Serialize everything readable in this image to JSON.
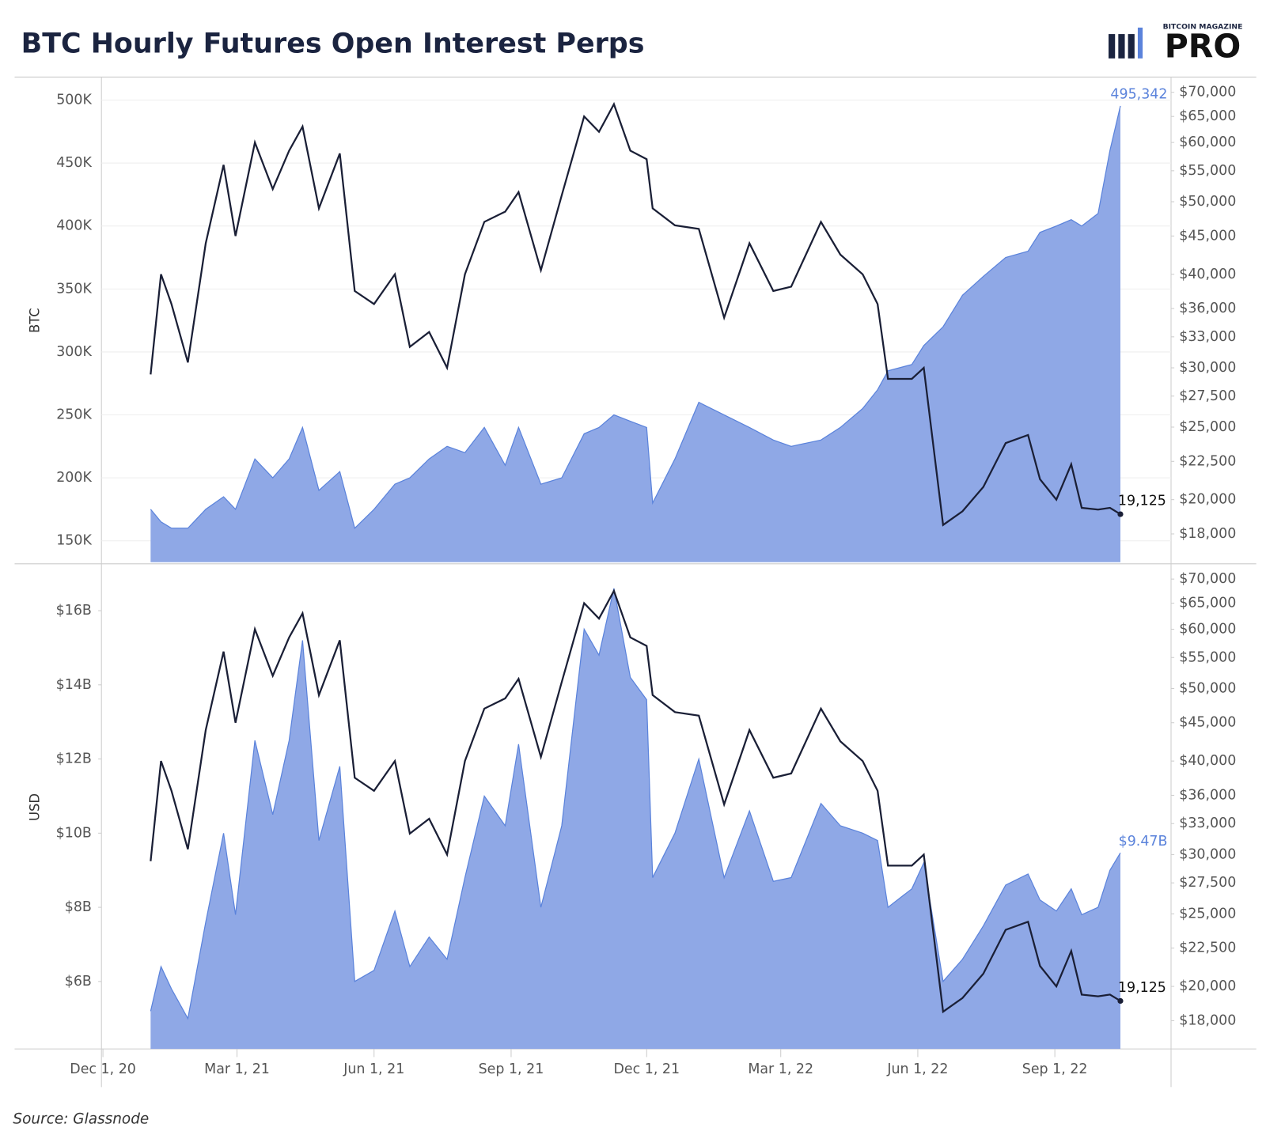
{
  "title": "BTC Hourly Futures Open Interest Perps",
  "source": "Source: Glassnode",
  "logo": {
    "top": "BITCOIN MAGAZINE",
    "main": "PRO"
  },
  "chart_data": [
    {
      "type": "area",
      "ylabel": "BTC",
      "x": [
        "2021-01-02",
        "2021-01-09",
        "2021-01-16",
        "2021-01-27",
        "2021-02-08",
        "2021-02-20",
        "2021-02-28",
        "2021-03-13",
        "2021-03-25",
        "2021-04-05",
        "2021-04-14",
        "2021-04-25",
        "2021-05-09",
        "2021-05-19",
        "2021-06-01",
        "2021-06-15",
        "2021-06-25",
        "2021-07-08",
        "2021-07-20",
        "2021-08-01",
        "2021-08-14",
        "2021-08-28",
        "2021-09-06",
        "2021-09-21",
        "2021-10-05",
        "2021-10-20",
        "2021-10-30",
        "2021-11-09",
        "2021-11-20",
        "2021-12-01",
        "2021-12-05",
        "2021-12-20",
        "2022-01-05",
        "2022-01-22",
        "2022-02-08",
        "2022-02-24",
        "2022-03-08",
        "2022-03-28",
        "2022-04-10",
        "2022-04-25",
        "2022-05-05",
        "2022-05-12",
        "2022-05-28",
        "2022-06-05",
        "2022-06-18",
        "2022-07-01",
        "2022-07-15",
        "2022-07-30",
        "2022-08-14",
        "2022-08-22",
        "2022-09-02",
        "2022-09-12",
        "2022-09-19",
        "2022-09-30",
        "2022-10-08",
        "2022-10-15"
      ],
      "xlim": [
        "2020-11-30",
        "2022-11-18"
      ],
      "ylim": [
        133000,
        517000
      ],
      "yticks": [
        {
          "value": 150000,
          "label": "150K"
        },
        {
          "value": 200000,
          "label": "200K"
        },
        {
          "value": 250000,
          "label": "250K"
        },
        {
          "value": 300000,
          "label": "300K"
        },
        {
          "value": 350000,
          "label": "350K"
        },
        {
          "value": 400000,
          "label": "400K"
        },
        {
          "value": 450000,
          "label": "450K"
        },
        {
          "value": 500000,
          "label": "500K"
        }
      ],
      "y2lim": [
        16500,
        73000
      ],
      "y2scale": "log",
      "y2ticks": [
        {
          "value": 18000,
          "label": "$18,000"
        },
        {
          "value": 20000,
          "label": "$20,000"
        },
        {
          "value": 22500,
          "label": "$22,500"
        },
        {
          "value": 25000,
          "label": "$25,000"
        },
        {
          "value": 27500,
          "label": "$27,500"
        },
        {
          "value": 30000,
          "label": "$30,000"
        },
        {
          "value": 33000,
          "label": "$33,000"
        },
        {
          "value": 36000,
          "label": "$36,000"
        },
        {
          "value": 40000,
          "label": "$40,000"
        },
        {
          "value": 45000,
          "label": "$45,000"
        },
        {
          "value": 50000,
          "label": "$50,000"
        },
        {
          "value": 55000,
          "label": "$55,000"
        },
        {
          "value": 60000,
          "label": "$60,000"
        },
        {
          "value": 65000,
          "label": "$65,000"
        },
        {
          "value": 70000,
          "label": "$70,000"
        }
      ],
      "grid": true,
      "series": [
        {
          "kind": "area",
          "axis": "y",
          "color": "#5b83db",
          "fill": "#8fa8e6",
          "values": [
            175000,
            165000,
            160000,
            160000,
            175000,
            185000,
            175000,
            215000,
            200000,
            215000,
            240000,
            190000,
            205000,
            160000,
            175000,
            195000,
            200000,
            215000,
            225000,
            220000,
            240000,
            210000,
            240000,
            195000,
            200000,
            235000,
            240000,
            250000,
            245000,
            240000,
            180000,
            215000,
            260000,
            250000,
            240000,
            230000,
            225000,
            230000,
            240000,
            255000,
            270000,
            285000,
            290000,
            305000,
            320000,
            345000,
            360000,
            375000,
            380000,
            395000,
            400000,
            405000,
            400000,
            410000,
            460000,
            495342
          ],
          "value_labels": [
            null,
            null,
            null,
            null,
            null,
            null,
            null,
            null,
            null,
            null,
            null,
            null,
            null,
            null,
            null,
            null,
            null,
            null,
            null,
            null,
            null,
            null,
            null,
            null,
            null,
            null,
            null,
            null,
            null,
            null,
            null,
            null,
            null,
            null,
            null,
            null,
            null,
            null,
            null,
            null,
            null,
            null,
            null,
            null,
            null,
            null,
            null,
            null,
            null,
            null,
            null,
            null,
            null,
            null,
            null,
            "495,342"
          ]
        },
        {
          "kind": "line",
          "axis": "y2",
          "color": "#1a1f36",
          "values": [
            29400,
            40000,
            36500,
            30500,
            44000,
            56000,
            45000,
            60000,
            52000,
            58500,
            63000,
            49000,
            58000,
            38000,
            36500,
            40000,
            32000,
            33500,
            30000,
            40000,
            47000,
            48500,
            51500,
            40500,
            51000,
            65000,
            62000,
            67500,
            58500,
            57000,
            49000,
            46500,
            46000,
            35000,
            44000,
            38000,
            38500,
            47000,
            42500,
            40000,
            36500,
            29000,
            29000,
            30000,
            18500,
            19300,
            20800,
            23800,
            24400,
            21300,
            20000,
            22300,
            19500,
            19400,
            19500,
            19125
          ],
          "value_labels": [
            null,
            null,
            null,
            null,
            null,
            null,
            null,
            null,
            null,
            null,
            null,
            null,
            null,
            null,
            null,
            null,
            null,
            null,
            null,
            null,
            null,
            null,
            null,
            null,
            null,
            null,
            null,
            null,
            null,
            null,
            null,
            null,
            null,
            null,
            null,
            null,
            null,
            null,
            null,
            null,
            null,
            null,
            null,
            null,
            null,
            null,
            null,
            null,
            null,
            null,
            null,
            null,
            null,
            null,
            null,
            "19,125"
          ]
        }
      ]
    },
    {
      "type": "area",
      "ylabel": "USD",
      "x": [
        "2021-01-02",
        "2021-01-09",
        "2021-01-16",
        "2021-01-27",
        "2021-02-08",
        "2021-02-20",
        "2021-02-28",
        "2021-03-13",
        "2021-03-25",
        "2021-04-05",
        "2021-04-14",
        "2021-04-25",
        "2021-05-09",
        "2021-05-19",
        "2021-06-01",
        "2021-06-15",
        "2021-06-25",
        "2021-07-08",
        "2021-07-20",
        "2021-08-01",
        "2021-08-14",
        "2021-08-28",
        "2021-09-06",
        "2021-09-21",
        "2021-10-05",
        "2021-10-20",
        "2021-10-30",
        "2021-11-09",
        "2021-11-20",
        "2021-12-01",
        "2021-12-05",
        "2021-12-20",
        "2022-01-05",
        "2022-01-22",
        "2022-02-08",
        "2022-02-24",
        "2022-03-08",
        "2022-03-28",
        "2022-04-10",
        "2022-04-25",
        "2022-05-05",
        "2022-05-12",
        "2022-05-28",
        "2022-06-05",
        "2022-06-18",
        "2022-07-01",
        "2022-07-15",
        "2022-07-30",
        "2022-08-14",
        "2022-08-22",
        "2022-09-02",
        "2022-09-12",
        "2022-09-19",
        "2022-09-30",
        "2022-10-08",
        "2022-10-15"
      ],
      "xlim": [
        "2020-11-30",
        "2022-11-18"
      ],
      "xticks": [
        {
          "value": "2020-12-01",
          "label": "Dec 1, 20"
        },
        {
          "value": "2021-03-01",
          "label": "Mar 1, 21"
        },
        {
          "value": "2021-06-01",
          "label": "Jun 1, 21"
        },
        {
          "value": "2021-09-01",
          "label": "Sep 1, 21"
        },
        {
          "value": "2021-12-01",
          "label": "Dec 1, 21"
        },
        {
          "value": "2022-03-01",
          "label": "Mar 1, 22"
        },
        {
          "value": "2022-06-01",
          "label": "Jun 1, 22"
        },
        {
          "value": "2022-09-01",
          "label": "Sep 1, 22"
        }
      ],
      "ylim": [
        4.18,
        17.22
      ],
      "yticks": [
        {
          "value": 6,
          "label": "$6B"
        },
        {
          "value": 8,
          "label": "$8B"
        },
        {
          "value": 10,
          "label": "$10B"
        },
        {
          "value": 12,
          "label": "$12B"
        },
        {
          "value": 14,
          "label": "$14B"
        },
        {
          "value": 16,
          "label": "$16B"
        }
      ],
      "y2lim": [
        16500,
        73000
      ],
      "y2scale": "log",
      "y2ticks": [
        {
          "value": 18000,
          "label": "$18,000"
        },
        {
          "value": 20000,
          "label": "$20,000"
        },
        {
          "value": 22500,
          "label": "$22,500"
        },
        {
          "value": 25000,
          "label": "$25,000"
        },
        {
          "value": 27500,
          "label": "$27,500"
        },
        {
          "value": 30000,
          "label": "$30,000"
        },
        {
          "value": 33000,
          "label": "$33,000"
        },
        {
          "value": 36000,
          "label": "$36,000"
        },
        {
          "value": 40000,
          "label": "$40,000"
        },
        {
          "value": 45000,
          "label": "$45,000"
        },
        {
          "value": 50000,
          "label": "$50,000"
        },
        {
          "value": 55000,
          "label": "$55,000"
        },
        {
          "value": 60000,
          "label": "$60,000"
        },
        {
          "value": 65000,
          "label": "$65,000"
        },
        {
          "value": 70000,
          "label": "$70,000"
        }
      ],
      "grid": false,
      "series": [
        {
          "kind": "area",
          "axis": "y",
          "color": "#5b83db",
          "fill": "#8fa8e6",
          "values": [
            5.2,
            6.4,
            5.8,
            5.0,
            7.6,
            10.0,
            7.8,
            12.5,
            10.5,
            12.5,
            15.2,
            9.8,
            11.8,
            6.0,
            6.3,
            7.9,
            6.4,
            7.2,
            6.6,
            8.8,
            11.0,
            10.2,
            12.4,
            8.0,
            10.2,
            15.5,
            14.8,
            16.6,
            14.2,
            13.6,
            8.8,
            10.0,
            12.0,
            8.8,
            10.6,
            8.7,
            8.8,
            10.8,
            10.2,
            10.0,
            9.8,
            8.0,
            8.5,
            9.2,
            6.0,
            6.6,
            7.5,
            8.6,
            8.9,
            8.2,
            7.9,
            8.5,
            7.8,
            8.0,
            9.0,
            9.47
          ],
          "value_labels": [
            null,
            null,
            null,
            null,
            null,
            null,
            null,
            null,
            null,
            null,
            null,
            null,
            null,
            null,
            null,
            null,
            null,
            null,
            null,
            null,
            null,
            null,
            null,
            null,
            null,
            null,
            null,
            null,
            null,
            null,
            null,
            null,
            null,
            null,
            null,
            null,
            null,
            null,
            null,
            null,
            null,
            null,
            null,
            null,
            null,
            null,
            null,
            null,
            null,
            null,
            null,
            null,
            null,
            null,
            null,
            "$9.47B"
          ]
        },
        {
          "kind": "line",
          "axis": "y2",
          "color": "#1a1f36",
          "values": [
            29400,
            40000,
            36500,
            30500,
            44000,
            56000,
            45000,
            60000,
            52000,
            58500,
            63000,
            49000,
            58000,
            38000,
            36500,
            40000,
            32000,
            33500,
            30000,
            40000,
            47000,
            48500,
            51500,
            40500,
            51000,
            65000,
            62000,
            67500,
            58500,
            57000,
            49000,
            46500,
            46000,
            35000,
            44000,
            38000,
            38500,
            47000,
            42500,
            40000,
            36500,
            29000,
            29000,
            30000,
            18500,
            19300,
            20800,
            23800,
            24400,
            21300,
            20000,
            22300,
            19500,
            19400,
            19500,
            19125
          ],
          "value_labels": [
            null,
            null,
            null,
            null,
            null,
            null,
            null,
            null,
            null,
            null,
            null,
            null,
            null,
            null,
            null,
            null,
            null,
            null,
            null,
            null,
            null,
            null,
            null,
            null,
            null,
            null,
            null,
            null,
            null,
            null,
            null,
            null,
            null,
            null,
            null,
            null,
            null,
            null,
            null,
            null,
            null,
            null,
            null,
            null,
            null,
            null,
            null,
            null,
            null,
            null,
            null,
            null,
            null,
            null,
            null,
            "19,125"
          ]
        }
      ]
    }
  ]
}
